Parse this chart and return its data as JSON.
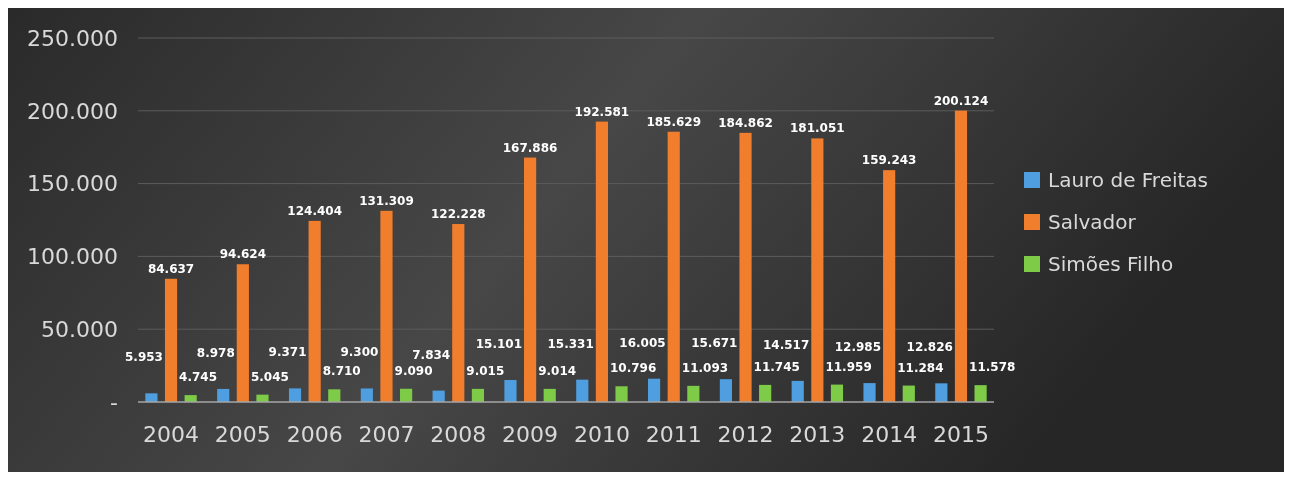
{
  "chart_data": {
    "type": "bar",
    "categories": [
      "2004",
      "2005",
      "2006",
      "2007",
      "2008",
      "2009",
      "2010",
      "2011",
      "2012",
      "2013",
      "2014",
      "2015"
    ],
    "series": [
      {
        "name": "Lauro de Freitas",
        "color": "#4e9ee0",
        "values": [
          5953,
          8978,
          9371,
          9300,
          7834,
          15101,
          15331,
          16005,
          15671,
          14517,
          12985,
          12826
        ],
        "value_labels": [
          "5.953",
          "8.978",
          "9.371",
          "9.300",
          "7.834",
          "15.101",
          "15.331",
          "16.005",
          "15.671",
          "14.517",
          "12.985",
          "12.826"
        ]
      },
      {
        "name": "Salvador",
        "color": "#f07e2c",
        "values": [
          84637,
          94624,
          124404,
          131309,
          122228,
          167886,
          192581,
          185629,
          184862,
          181051,
          159243,
          200124
        ],
        "value_labels": [
          "84.637",
          "94.624",
          "124.404",
          "131.309",
          "122.228",
          "167.886",
          "192.581",
          "185.629",
          "184.862",
          "181.051",
          "159.243",
          "200.124"
        ]
      },
      {
        "name": "Simões Filho",
        "color": "#7ecb48",
        "values": [
          4745,
          5045,
          8710,
          9090,
          9015,
          9014,
          10796,
          11093,
          11745,
          11959,
          11284,
          11578
        ],
        "value_labels": [
          "4.745",
          "5.045",
          "8.710",
          "9.090",
          "9.015",
          "9.014",
          "10.796",
          "11.093",
          "11.745",
          "11.959",
          "11.284",
          "11.578"
        ]
      }
    ],
    "ylim": [
      0,
      250000
    ],
    "yticks": [
      {
        "value": 0,
        "label": "-"
      },
      {
        "value": 50000,
        "label": "50.000"
      },
      {
        "value": 100000,
        "label": "100.000"
      },
      {
        "value": 150000,
        "label": "150.000"
      },
      {
        "value": 200000,
        "label": "200.000"
      },
      {
        "value": 250000,
        "label": "250.000"
      }
    ],
    "grid": "y",
    "legend": "right"
  }
}
